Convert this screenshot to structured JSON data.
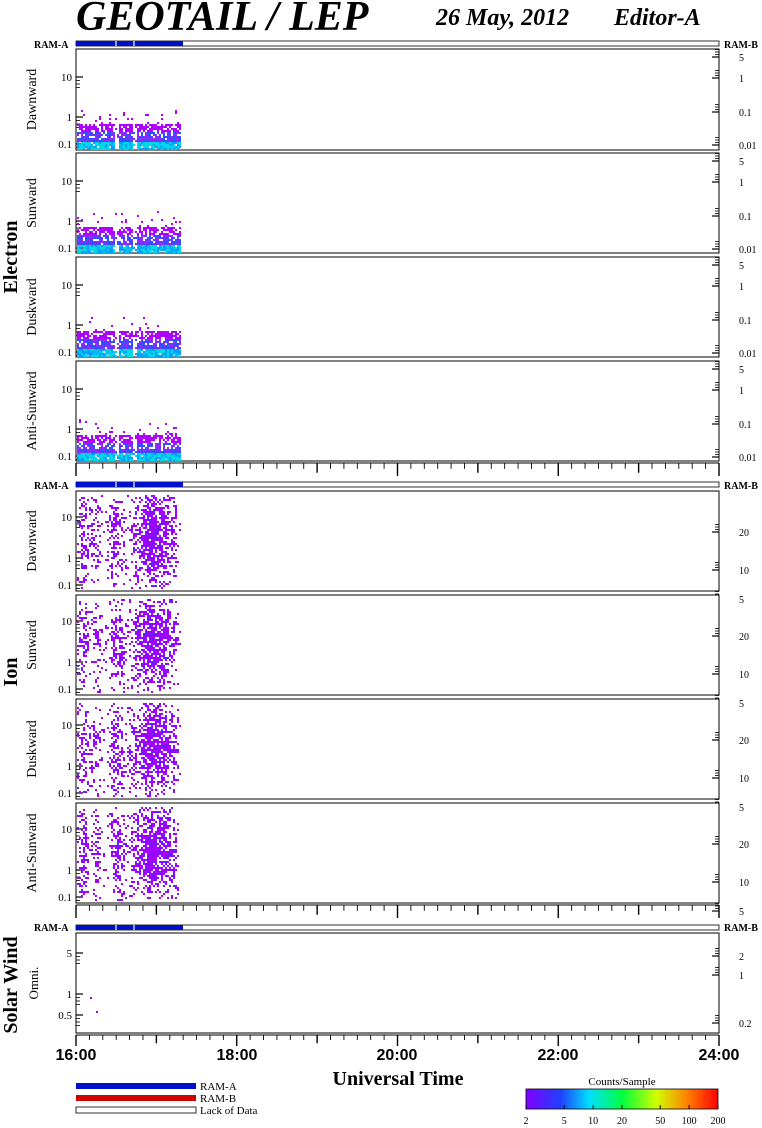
{
  "header": {
    "title": "GEOTAIL / LEP",
    "date": "26 May, 2012",
    "editor": "Editor-A"
  },
  "ram_labels": {
    "left": "RAM-A",
    "right": "RAM-B"
  },
  "groups": [
    {
      "name": "Electron",
      "panels": [
        "Dawnward",
        "Sunward",
        "Duskward",
        "Anti-Sunward"
      ]
    },
    {
      "name": "Ion",
      "panels": [
        "Dawnward",
        "Sunward",
        "Duskward",
        "Anti-Sunward"
      ]
    },
    {
      "name": "Solar Wind",
      "panels": [
        "Omni."
      ]
    }
  ],
  "colors": {
    "ram_a": "#0010c8",
    "ram_b": "#d00000",
    "lack_of_data": "#ffffff",
    "electron_low": "#0080ff",
    "electron_mid": "#00d8e8",
    "electron_high": "#b000ff",
    "ion": "#a000ff"
  },
  "legend": {
    "ram_a": "RAM-A",
    "ram_b": "RAM-B",
    "lack": "Lack of Data",
    "colorbar_title": "Counts/Sample"
  },
  "chart_data": {
    "type": "heatmap",
    "xlabel": "Universal Time",
    "x_ticks": [
      "16:00",
      "18:00",
      "20:00",
      "22:00",
      "24:00"
    ],
    "x_range_hours": [
      16,
      24
    ],
    "data_coverage_hours": [
      16.0,
      17.3
    ],
    "ram_a_intervals_hours": [
      [
        16.0,
        17.3
      ]
    ],
    "panels": [
      {
        "group": "Electron",
        "name": "Dawnward",
        "left_ticks": [
          "10",
          "1",
          "0.1"
        ],
        "right_ticks": [
          "5",
          "1",
          "0.1",
          "0.01"
        ]
      },
      {
        "group": "Electron",
        "name": "Sunward",
        "left_ticks": [
          "10",
          "1",
          "0.1"
        ],
        "right_ticks": [
          "5",
          "1",
          "0.1",
          "0.01"
        ]
      },
      {
        "group": "Electron",
        "name": "Duskward",
        "left_ticks": [
          "10",
          "1",
          "0.1"
        ],
        "right_ticks": [
          "5",
          "1",
          "0.1",
          "0.01"
        ]
      },
      {
        "group": "Electron",
        "name": "Anti-Sunward",
        "left_ticks": [
          "10",
          "1",
          "0.1"
        ],
        "right_ticks": [
          "5",
          "1",
          "0.1",
          "0.01"
        ]
      },
      {
        "group": "Ion",
        "name": "Dawnward",
        "left_ticks": [
          "10",
          "1",
          "0.1"
        ],
        "right_ticks": [
          "20",
          "10",
          "5"
        ]
      },
      {
        "group": "Ion",
        "name": "Sunward",
        "left_ticks": [
          "10",
          "1",
          "0.1"
        ],
        "right_ticks": [
          "20",
          "10",
          "5"
        ]
      },
      {
        "group": "Ion",
        "name": "Duskward",
        "left_ticks": [
          "10",
          "1",
          "0.1"
        ],
        "right_ticks": [
          "20",
          "10",
          "5"
        ]
      },
      {
        "group": "Ion",
        "name": "Anti-Sunward",
        "left_ticks": [
          "10",
          "1",
          "0.1"
        ],
        "right_ticks": [
          "20",
          "10",
          "5"
        ]
      },
      {
        "group": "Solar Wind",
        "name": "Omni.",
        "left_ticks": [
          "5",
          "1",
          "0.5"
        ],
        "right_ticks": [
          "2",
          "1",
          "0.2"
        ]
      }
    ],
    "colorbar": {
      "title": "Counts/Sample",
      "scale": "log",
      "ticks": [
        "2",
        "5",
        "10",
        "20",
        "50",
        "100",
        "200"
      ],
      "range": [
        2,
        200
      ]
    }
  }
}
